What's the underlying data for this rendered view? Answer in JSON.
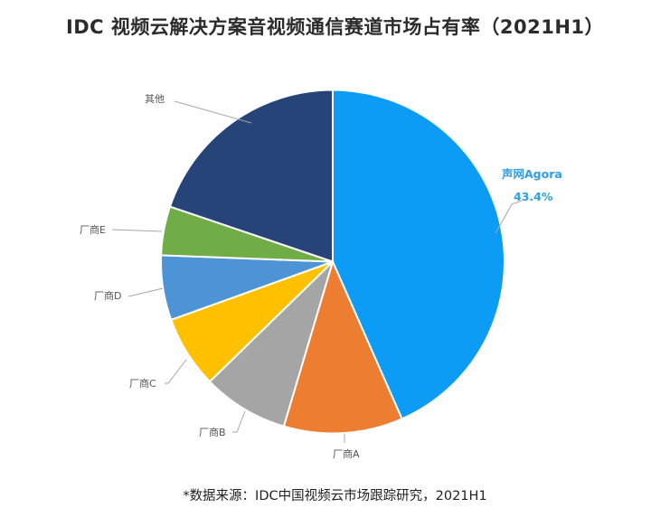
{
  "title": "IDC 视频云解决方案音视频通信赛道市场占有率（2021H1）",
  "source_note": "*数据来源：IDC中国视频云市场跟踪研究，2021H1",
  "chart_data": {
    "type": "pie",
    "title": "IDC 视频云解决方案音视频通信赛道市场占有率（2021H1）",
    "start_angle_deg": 0,
    "direction": "clockwise",
    "categories": [
      "声网Agora",
      "厂商A",
      "厂商B",
      "厂商C",
      "厂商D",
      "厂商E",
      "其他"
    ],
    "values": [
      43.4,
      11.2,
      8.1,
      6.8,
      6.1,
      4.6,
      19.8
    ],
    "colors": [
      "#0d9cf5",
      "#ed7d31",
      "#a5a5a5",
      "#ffc000",
      "#4d94d6",
      "#70ad47",
      "#264478"
    ],
    "data_labels": [
      {
        "name": "声网Agora",
        "value_label": "43.4%",
        "highlight": true
      },
      {
        "name": "厂商A",
        "value_label": ""
      },
      {
        "name": "厂商B",
        "value_label": ""
      },
      {
        "name": "厂商C",
        "value_label": ""
      },
      {
        "name": "厂商D",
        "value_label": ""
      },
      {
        "name": "厂商E",
        "value_label": ""
      },
      {
        "name": "其他",
        "value_label": ""
      }
    ],
    "legend": "none",
    "annotation": "*数据来源：IDC中国视频云市场跟踪研究，2021H1"
  },
  "labels": {
    "agora_name": "声网Agora",
    "agora_value": "43.4%",
    "a": "厂商A",
    "b": "厂商B",
    "c": "厂商C",
    "d": "厂商D",
    "e": "厂商E",
    "other": "其他"
  }
}
